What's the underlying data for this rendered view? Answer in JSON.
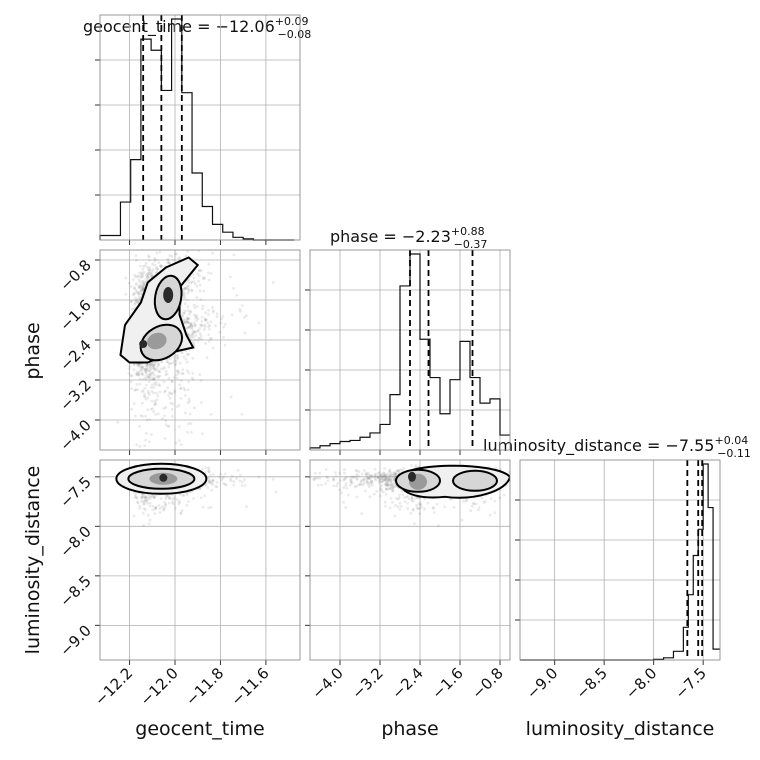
{
  "figure": {
    "type": "corner-plot"
  },
  "parameters": [
    {
      "name": "geocent_time",
      "title_main": "geocent_time = −12.06",
      "title_plus": "+0.09",
      "title_minus": "−0.08",
      "axis_label": "geocent_time",
      "range": [
        -12.33,
        -11.45
      ],
      "ticks": [
        -12.2,
        -12.0,
        -11.8,
        -11.6
      ],
      "tick_labels": [
        "−12.2",
        "−12.0",
        "−11.8",
        "−11.6"
      ],
      "quantiles": [
        -12.14,
        -12.06,
        -11.97
      ]
    },
    {
      "name": "phase",
      "title_main": "phase = −2.23",
      "title_plus": "+0.88",
      "title_minus": "−0.37",
      "axis_label": "phase",
      "range": [
        -4.6,
        -0.6
      ],
      "ticks": [
        -4.0,
        -3.2,
        -2.4,
        -1.6,
        -0.8
      ],
      "tick_labels": [
        "−4.0",
        "−3.2",
        "−2.4",
        "−1.6",
        "−0.8"
      ],
      "quantiles": [
        -2.6,
        -2.23,
        -1.35
      ]
    },
    {
      "name": "luminosity_distance",
      "title_main": "luminosity_distance = −7.55",
      "title_plus": "+0.04",
      "title_minus": "−0.11",
      "axis_label": "luminosity_distance",
      "range": [
        -9.35,
        -7.33
      ],
      "ticks": [
        -9.0,
        -8.5,
        -8.0,
        -7.5
      ],
      "tick_labels": [
        "−9.0",
        "−8.5",
        "−8.0",
        "−7.5"
      ],
      "quantiles": [
        -7.66,
        -7.55,
        -7.51
      ]
    }
  ],
  "chart_data": {
    "type": "histogram",
    "histograms": [
      {
        "parameter": "geocent_time",
        "bin_edges": [
          -12.33,
          -12.285,
          -12.24,
          -12.195,
          -12.15,
          -12.105,
          -12.06,
          -12.015,
          -11.97,
          -11.925,
          -11.88,
          -11.835,
          -11.79,
          -11.745,
          -11.7,
          -11.655,
          -11.61,
          -11.565,
          -11.52,
          -11.475
        ],
        "counts": [
          0.02,
          0.02,
          0.17,
          0.36,
          0.9,
          0.85,
          0.67,
          0.99,
          0.66,
          0.3,
          0.15,
          0.07,
          0.035,
          0.012,
          0.005,
          0,
          0,
          0,
          0
        ]
      },
      {
        "parameter": "phase",
        "bin_edges": [
          -4.6,
          -4.4,
          -4.2,
          -4.0,
          -3.8,
          -3.6,
          -3.4,
          -3.2,
          -3.0,
          -2.8,
          -2.6,
          -2.4,
          -2.2,
          -2.0,
          -1.8,
          -1.6,
          -1.4,
          -1.2,
          -1.0,
          -0.8,
          -0.6
        ],
        "counts": [
          0.01,
          0.02,
          0.03,
          0.04,
          0.045,
          0.06,
          0.08,
          0.12,
          0.26,
          0.77,
          0.92,
          0.52,
          0.34,
          0.17,
          0.33,
          0.51,
          0.34,
          0.22,
          0.24,
          0.07
        ]
      },
      {
        "parameter": "luminosity_distance",
        "bin_edges": [
          -9.35,
          -9.2,
          -9.05,
          -8.9,
          -8.75,
          -8.6,
          -8.45,
          -8.3,
          -8.15,
          -8.0,
          -7.9,
          -7.8,
          -7.7,
          -7.65,
          -7.6,
          -7.55,
          -7.5,
          -7.45,
          -7.4,
          -7.33
        ],
        "counts": [
          0,
          0,
          0,
          0,
          0,
          0,
          0,
          0,
          0,
          0.003,
          0.01,
          0.04,
          0.15,
          0.3,
          0.48,
          0.6,
          0.9,
          0.7,
          0.05
        ]
      }
    ]
  }
}
